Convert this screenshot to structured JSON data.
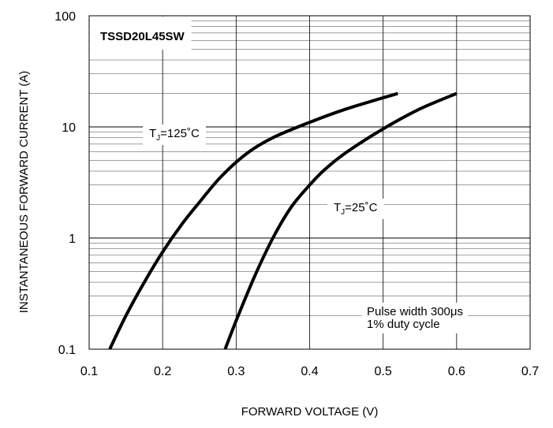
{
  "chart_data": {
    "type": "line",
    "title": "TSSD20L45SW",
    "xlabel": "FORWARD VOLTAGE (V)",
    "ylabel": "INSTANTANEOUS FORWARD CURRENT (A)",
    "xlim": [
      0.1,
      0.7
    ],
    "ylim": [
      0.1,
      100
    ],
    "yscale": "log",
    "grid": true,
    "x_ticks": [
      "0.1",
      "0.2",
      "0.3",
      "0.4",
      "0.5",
      "0.6",
      "0.7"
    ],
    "y_ticks": [
      "0.1",
      "1",
      "10",
      "100"
    ],
    "series": [
      {
        "name": "TJ=125°C",
        "label_main": "T",
        "label_sub": "J",
        "label_rest": "=125˚C",
        "x": [
          0.128,
          0.15,
          0.175,
          0.2,
          0.225,
          0.25,
          0.28,
          0.315,
          0.35,
          0.4,
          0.45,
          0.52
        ],
        "y": [
          0.1,
          0.2,
          0.4,
          0.75,
          1.3,
          2.1,
          3.6,
          5.8,
          8.0,
          11.0,
          14.5,
          20.0
        ]
      },
      {
        "name": "TJ=25°C",
        "label_main": "T",
        "label_sub": "J",
        "label_rest": "=25˚C",
        "x": [
          0.285,
          0.3,
          0.325,
          0.35,
          0.375,
          0.4,
          0.42,
          0.45,
          0.5,
          0.55,
          0.6
        ],
        "y": [
          0.1,
          0.18,
          0.45,
          1.0,
          1.9,
          3.0,
          4.1,
          5.9,
          9.6,
          14.5,
          20.0
        ]
      }
    ],
    "annotation": [
      "Pulse width 300μs",
      "1% duty cycle"
    ]
  },
  "colors": {
    "line": "#000000",
    "grid": "#666666",
    "background": "#ffffff"
  }
}
